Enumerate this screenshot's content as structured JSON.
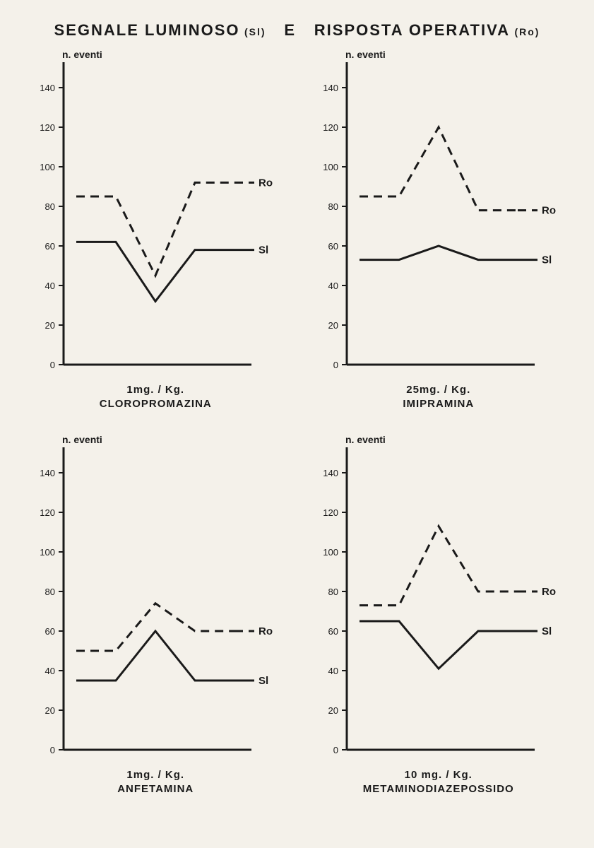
{
  "title": {
    "left_main": "SEGNALE LUMINOSO",
    "left_sub": "(Sl)",
    "mid": "E",
    "right_main": "RISPOSTA OPERATIVA",
    "right_sub": "(Ro)"
  },
  "shared": {
    "y_label": "n. eventi",
    "y_min": 0,
    "y_max": 150,
    "y_ticks": [
      0,
      20,
      40,
      60,
      80,
      100,
      120,
      140
    ],
    "x_points_count": 5,
    "line_color": "#1a1a1a",
    "axis_color": "#1a1a1a",
    "axis_width": 3,
    "line_width": 3,
    "dash_pattern": "12,8",
    "tick_fontsize": 13,
    "series_labels": {
      "ro": "Ro",
      "sl": "Sl"
    },
    "background": "#f4f1ea"
  },
  "panels": [
    {
      "id": "cloropromazina",
      "dose": "1mg. / Kg.",
      "drug": "CLOROPROMAZINA",
      "ro": [
        85,
        85,
        45,
        92,
        92
      ],
      "sl": [
        62,
        62,
        32,
        58,
        58
      ]
    },
    {
      "id": "imipramina",
      "dose": "25mg. / Kg.",
      "drug": "IMIPRAMINA",
      "ro": [
        85,
        85,
        120,
        78,
        78
      ],
      "sl": [
        53,
        53,
        60,
        53,
        53
      ]
    },
    {
      "id": "anfetamina",
      "dose": "1mg. / Kg.",
      "drug": "ANFETAMINA",
      "ro": [
        50,
        50,
        74,
        60,
        60
      ],
      "sl": [
        35,
        35,
        60,
        35,
        35
      ]
    },
    {
      "id": "metaminodiazepossido",
      "dose": "10 mg. / Kg.",
      "drug": "METAMINODIAZEPOSSIDO",
      "ro": [
        73,
        73,
        113,
        80,
        80
      ],
      "sl": [
        65,
        65,
        41,
        60,
        60
      ]
    }
  ]
}
